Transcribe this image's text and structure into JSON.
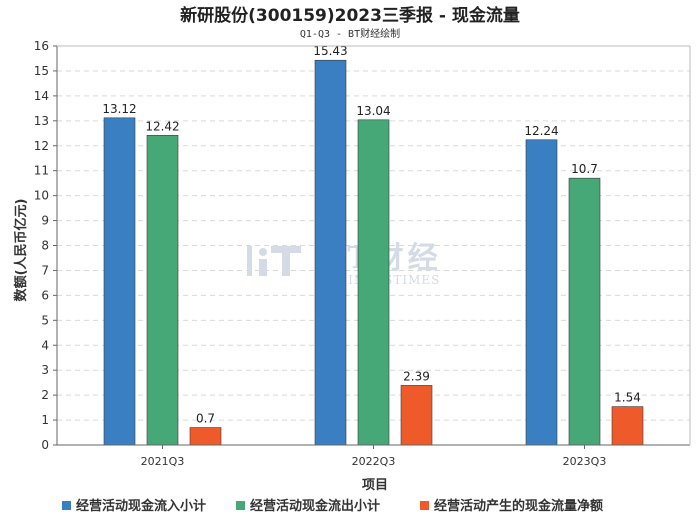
{
  "chart_data": {
    "type": "bar",
    "title": "新研股份(300159)2023三季报 - 现金流量",
    "subtitle": "Q1-Q3 - BT财经绘制",
    "xlabel": "项目",
    "ylabel": "数额(人民币亿元)",
    "ylim": [
      0,
      16
    ],
    "yticks": [
      0,
      1,
      2,
      3,
      4,
      5,
      6,
      7,
      8,
      9,
      10,
      11,
      12,
      13,
      14,
      15,
      16
    ],
    "grid": true,
    "legend_position": "bottom",
    "categories": [
      "2021Q3",
      "2022Q3",
      "2023Q3"
    ],
    "series": [
      {
        "name": "经营活动现金流入小计",
        "color": "#3a7fc1",
        "values": [
          13.12,
          15.43,
          12.24
        ]
      },
      {
        "name": "经营活动现金流出小计",
        "color": "#45a876",
        "values": [
          12.42,
          13.04,
          10.7
        ]
      },
      {
        "name": "经营活动产生的现金流量净额",
        "color": "#ef5a2b",
        "values": [
          0.7,
          2.39,
          1.54
        ]
      }
    ]
  },
  "watermark": {
    "main": "BT财经",
    "sub": "BUSINESSTIMES"
  }
}
